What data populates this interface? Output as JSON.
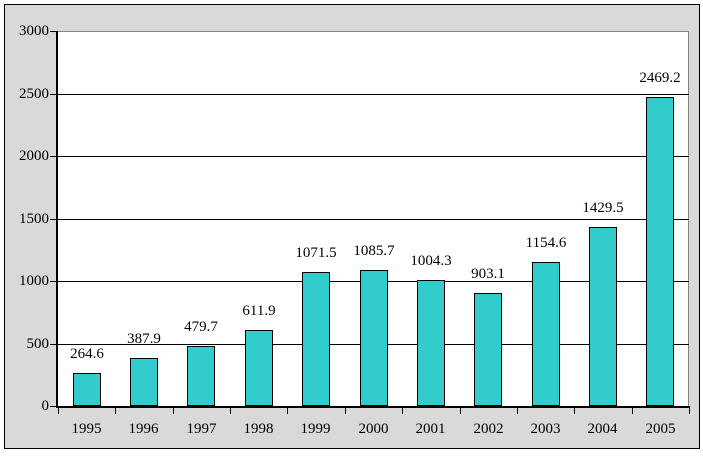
{
  "chart_data": {
    "type": "bar",
    "categories": [
      "1995",
      "1996",
      "1997",
      "1998",
      "1999",
      "2000",
      "2001",
      "2002",
      "2003",
      "2004",
      "2005"
    ],
    "values": [
      264.6,
      387.9,
      479.7,
      611.9,
      1071.5,
      1085.7,
      1004.3,
      903.1,
      1154.6,
      1429.5,
      2469.2
    ],
    "data_labels": [
      "264.6",
      "387.9",
      "479.7",
      "611.9",
      "1071.5",
      "1085.7",
      "1004.3",
      "903.1",
      "1154.6",
      "1429.5",
      "2469.2"
    ],
    "title": "",
    "xlabel": "",
    "ylabel": "",
    "ylim": [
      0,
      3000
    ],
    "yticks": [
      0,
      500,
      1000,
      1500,
      2000,
      2500,
      3000
    ],
    "ytick_labels": [
      "0",
      "500",
      "1000",
      "1500",
      "2000",
      "2500",
      "3000"
    ],
    "grid": true,
    "legend": false,
    "colors": {
      "bar_fill": "#33CCCC",
      "bar_border": "#000000",
      "plot_background": "#FFFFFF",
      "chart_background": "#D9D9D9",
      "gridline": "#000000",
      "plot_border_top_right": "#848484",
      "axis": "#000000",
      "label_text": "#000000"
    }
  }
}
